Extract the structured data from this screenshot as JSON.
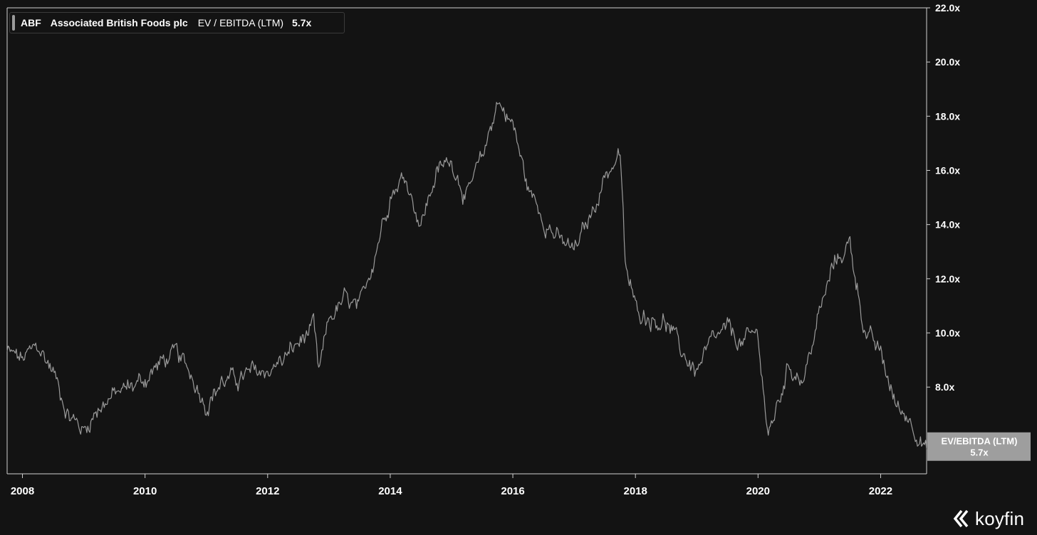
{
  "legend": {
    "ticker": "ABF",
    "company": "Associated British Foods plc",
    "metric": "EV / EBITDA (LTM)",
    "value": "5.7x"
  },
  "current_label": {
    "title": "EV/EBITDA (LTM)",
    "value": "5.7x"
  },
  "brand": {
    "name": "koyfin"
  },
  "colors": {
    "background": "#131313",
    "line": "#9a9a9a",
    "axis": "#d0d0d0",
    "label_bg": "#9e9e9e"
  },
  "chart_data": {
    "type": "line",
    "series": [
      {
        "x": [
          "2007-10",
          "2008-01",
          "2008-04",
          "2008-07",
          "2008-10",
          "2009-01",
          "2009-04",
          "2009-07",
          "2009-10",
          "2010-01",
          "2010-04",
          "2010-07",
          "2010-10",
          "2011-01",
          "2011-04",
          "2011-07",
          "2011-10",
          "2012-01",
          "2012-04",
          "2012-07",
          "2012-10",
          "2012-11",
          "2013-01",
          "2013-04",
          "2013-07",
          "2013-10",
          "2014-01",
          "2014-04",
          "2014-07",
          "2014-10",
          "2015-01",
          "2015-04",
          "2015-07",
          "2015-10",
          "2016-01",
          "2016-04",
          "2016-07",
          "2016-10",
          "2017-01",
          "2017-04",
          "2017-07",
          "2017-10",
          "2017-11",
          "2018-01",
          "2018-04",
          "2018-07",
          "2018-10",
          "2019-01",
          "2019-04",
          "2019-07",
          "2019-10",
          "2020-01",
          "2020-03",
          "2020-07",
          "2020-10",
          "2021-01",
          "2021-04",
          "2021-07",
          "2021-10",
          "2022-01",
          "2022-04",
          "2022-07",
          "2022-10"
        ],
        "values": [
          9.3,
          9.0,
          9.5,
          8.6,
          7.0,
          6.4,
          7.3,
          7.7,
          8.0,
          8.3,
          8.9,
          9.2,
          8.5,
          7.4,
          8.2,
          8.3,
          8.5,
          8.6,
          9.0,
          9.6,
          10.2,
          8.4,
          10.5,
          11.2,
          10.8,
          13.0,
          15.2,
          15.8,
          14.0,
          15.9,
          16.4,
          15.0,
          16.4,
          18.6,
          17.7,
          15.3,
          14.3,
          13.4,
          13.0,
          14.2,
          15.8,
          16.6,
          12.5,
          10.9,
          10.6,
          10.4,
          9.3,
          8.6,
          9.6,
          10.1,
          9.6,
          10.0,
          6.1,
          8.8,
          8.3,
          10.7,
          12.6,
          13.3,
          10.0,
          9.2,
          7.3,
          6.8,
          5.7
        ]
      }
    ],
    "xlabel": "",
    "ylabel": "",
    "x_ticks": [
      "2008",
      "2010",
      "2012",
      "2014",
      "2016",
      "2018",
      "2020",
      "2022"
    ],
    "y_ticks": [
      "8.0x",
      "10.0x",
      "12.0x",
      "14.0x",
      "16.0x",
      "18.0x",
      "20.0x",
      "22.0x"
    ],
    "ylim": [
      4.8,
      22
    ],
    "xlim": [
      "2007-10",
      "2022-10"
    ],
    "grid": false,
    "legend_placement": "top-left"
  }
}
